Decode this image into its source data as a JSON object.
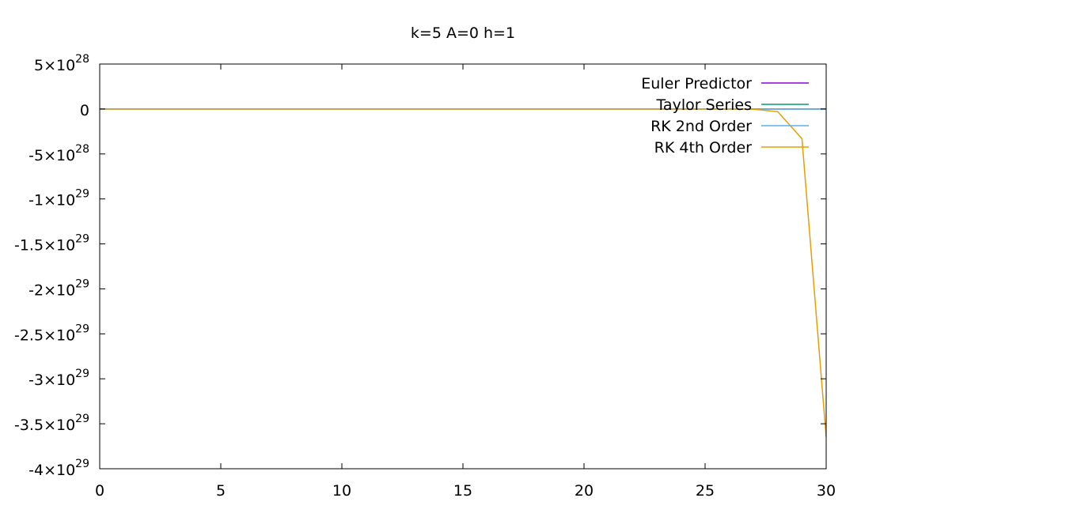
{
  "chart_data": {
    "type": "line",
    "title": "k=5 A=0 h=1",
    "xlabel": "",
    "ylabel": "",
    "xlim": [
      0,
      30
    ],
    "ylim": [
      -4e+29,
      5e+28
    ],
    "grid": false,
    "legend_position": "top-right",
    "x_ticks": [
      {
        "value": 0,
        "label": "0"
      },
      {
        "value": 5,
        "label": "5"
      },
      {
        "value": 10,
        "label": "10"
      },
      {
        "value": 15,
        "label": "15"
      },
      {
        "value": 20,
        "label": "20"
      },
      {
        "value": 25,
        "label": "25"
      },
      {
        "value": 30,
        "label": "30"
      }
    ],
    "y_ticks": [
      {
        "value": 5e+28,
        "mantissa": "5",
        "exp": "28"
      },
      {
        "value": 0,
        "mantissa": "0",
        "exp": ""
      },
      {
        "value": -5e+28,
        "mantissa": "-5",
        "exp": "28"
      },
      {
        "value": -1e+29,
        "mantissa": "-1",
        "exp": "29"
      },
      {
        "value": -1.5e+29,
        "mantissa": "-1.5",
        "exp": "29"
      },
      {
        "value": -2e+29,
        "mantissa": "-2",
        "exp": "29"
      },
      {
        "value": -2.5e+29,
        "mantissa": "-2.5",
        "exp": "29"
      },
      {
        "value": -3e+29,
        "mantissa": "-3",
        "exp": "29"
      },
      {
        "value": -3.5e+29,
        "mantissa": "-3.5",
        "exp": "29"
      },
      {
        "value": -4e+29,
        "mantissa": "-4",
        "exp": "29"
      }
    ],
    "series": [
      {
        "name": "Euler Predictor",
        "color": "#9400d3",
        "x": [
          0,
          5,
          10,
          15,
          20,
          25,
          30
        ],
        "y": [
          0,
          0,
          0,
          0,
          0,
          0,
          0
        ]
      },
      {
        "name": "Taylor Series",
        "color": "#009e73",
        "x": [
          0,
          5,
          10,
          15,
          20,
          25,
          30
        ],
        "y": [
          0,
          0,
          0,
          0,
          0,
          0,
          0
        ]
      },
      {
        "name": "RK 2nd Order",
        "color": "#56b4e9",
        "x": [
          0,
          5,
          10,
          15,
          20,
          25,
          30
        ],
        "y": [
          0,
          0,
          0,
          0,
          0,
          0,
          0
        ]
      },
      {
        "name": "RK 4th Order",
        "color": "#e69f00",
        "x": [
          0,
          5,
          10,
          15,
          20,
          25,
          26,
          27,
          28,
          29,
          30
        ],
        "y": [
          0,
          0,
          0,
          0,
          0,
          0,
          0,
          -2e+26,
          -3e+27,
          -3.3e+28,
          -3.65e+29
        ]
      }
    ]
  }
}
